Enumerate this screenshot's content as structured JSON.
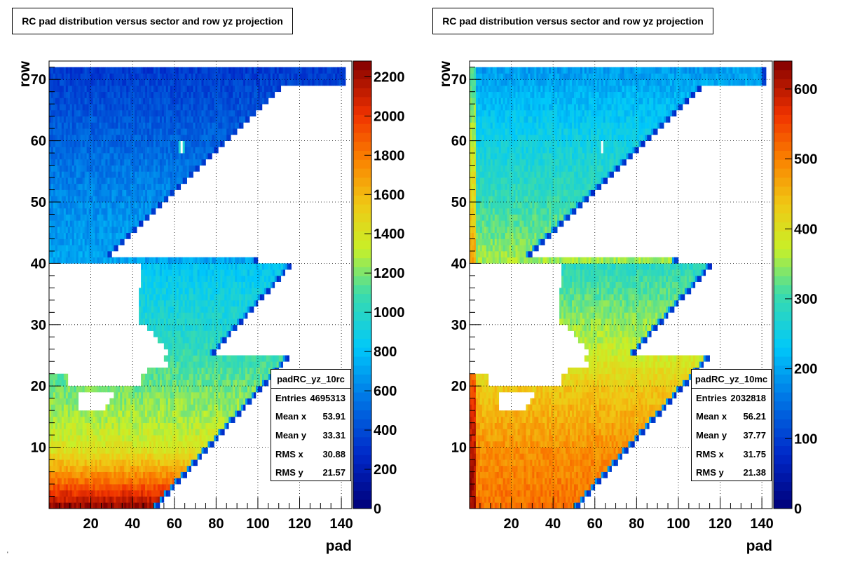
{
  "chart_data": [
    {
      "type": "heatmap",
      "title": "RC pad distribution versus sector and row yz projection",
      "xlabel": "pad",
      "ylabel": "row",
      "xlim": [
        0,
        145
      ],
      "ylim": [
        0,
        73
      ],
      "zlim": [
        0,
        2280
      ],
      "x_ticks": [
        "20",
        "40",
        "60",
        "80",
        "100",
        "120",
        "140"
      ],
      "y_ticks": [
        "10",
        "20",
        "30",
        "40",
        "50",
        "60",
        "70"
      ],
      "z_ticks": [
        "0",
        "200",
        "400",
        "600",
        "800",
        "1000",
        "1200",
        "1400",
        "1600",
        "1800",
        "2000",
        "2200"
      ],
      "grid": true,
      "colorbar": "rainbow",
      "stats": {
        "name": "padRC_yz_10rc",
        "rows": [
          {
            "label": "Entries",
            "value": "4695313"
          },
          {
            "label": "Mean x",
            "value": "53.91"
          },
          {
            "label": "Mean y",
            "value": "33.31"
          },
          {
            "label": "RMS x",
            "value": "30.88"
          },
          {
            "label": "RMS y",
            "value": "21.57"
          }
        ]
      },
      "level": [
        {
          "row": 1,
          "frac": 0.97
        },
        {
          "row": 5,
          "frac": 0.8
        },
        {
          "row": 10,
          "frac": 0.62
        },
        {
          "row": 15,
          "frac": 0.56
        },
        {
          "row": 20,
          "frac": 0.52
        },
        {
          "row": 25,
          "frac": 0.47
        },
        {
          "row": 30,
          "frac": 0.43
        },
        {
          "row": 35,
          "frac": 0.4
        },
        {
          "row": 40,
          "frac": 0.36
        },
        {
          "row": 41,
          "frac": 0.31
        },
        {
          "row": 50,
          "frac": 0.28
        },
        {
          "row": 60,
          "frac": 0.22
        },
        {
          "row": 72,
          "frac": 0.15
        }
      ],
      "left_edge_boost": 0.0
    },
    {
      "type": "heatmap",
      "title": "RC pad distribution versus sector and row yz projection",
      "xlabel": "pad",
      "ylabel": "row",
      "xlim": [
        0,
        145
      ],
      "ylim": [
        0,
        73
      ],
      "zlim": [
        0,
        640
      ],
      "x_ticks": [
        "20",
        "40",
        "60",
        "80",
        "100",
        "120",
        "140"
      ],
      "y_ticks": [
        "10",
        "20",
        "30",
        "40",
        "50",
        "60",
        "70"
      ],
      "z_ticks": [
        "0",
        "100",
        "200",
        "300",
        "400",
        "500",
        "600"
      ],
      "grid": true,
      "colorbar": "rainbow",
      "stats": {
        "name": "padRC_yz_10mc",
        "rows": [
          {
            "label": "Entries",
            "value": "2032818"
          },
          {
            "label": "Mean x",
            "value": "56.21"
          },
          {
            "label": "Mean y",
            "value": "37.77"
          },
          {
            "label": "RMS x",
            "value": "31.75"
          },
          {
            "label": "RMS y",
            "value": "21.38"
          }
        ]
      },
      "level": [
        {
          "row": 1,
          "frac": 0.8
        },
        {
          "row": 10,
          "frac": 0.76
        },
        {
          "row": 20,
          "frac": 0.68
        },
        {
          "row": 25,
          "frac": 0.6
        },
        {
          "row": 30,
          "frac": 0.55
        },
        {
          "row": 35,
          "frac": 0.5
        },
        {
          "row": 40,
          "frac": 0.45
        },
        {
          "row": 41,
          "frac": 0.55
        },
        {
          "row": 50,
          "frac": 0.47
        },
        {
          "row": 60,
          "frac": 0.4
        },
        {
          "row": 72,
          "frac": 0.3
        }
      ],
      "left_edge_boost": 0.18
    }
  ],
  "footer_mark": "'"
}
